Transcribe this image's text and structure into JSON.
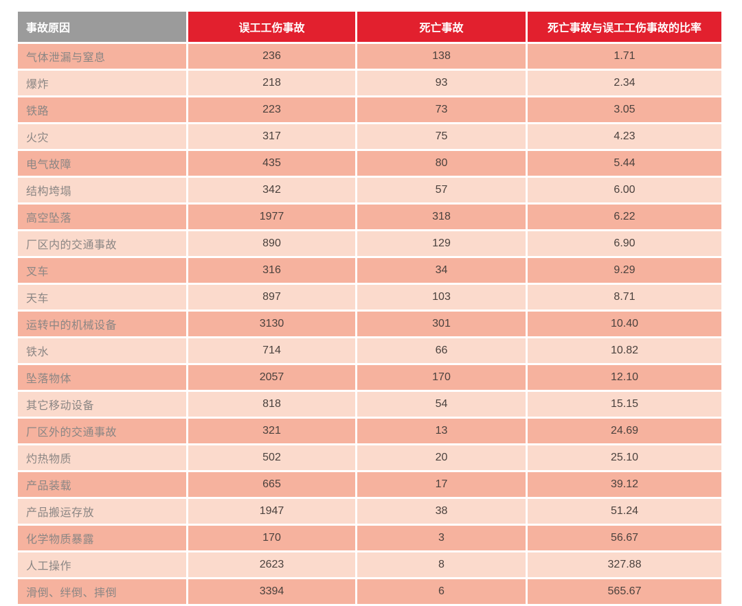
{
  "colors": {
    "background": "#ffffff",
    "header_gray": "#9b9b9b",
    "header_red": "#e2202e",
    "header_text": "#ffffff",
    "row_dark": "#f6b29e",
    "row_light": "#fbdacc",
    "label_text": "#8b8684",
    "number_text": "#4a413d"
  },
  "chart_data": {
    "type": "table",
    "title": "",
    "columns": [
      "事故原因",
      "误工工伤事故",
      "死亡事故",
      "死亡事故与误工工伤事故的比率"
    ],
    "rows": [
      [
        "气体泄漏与窒息",
        "236",
        "138",
        "1.71"
      ],
      [
        "爆炸",
        "218",
        "93",
        "2.34"
      ],
      [
        "铁路",
        "223",
        "73",
        "3.05"
      ],
      [
        "火灾",
        "317",
        "75",
        "4.23"
      ],
      [
        "电气故障",
        "435",
        "80",
        "5.44"
      ],
      [
        "结构垮塌",
        "342",
        "57",
        "6.00"
      ],
      [
        "高空坠落",
        "1977",
        "318",
        "6.22"
      ],
      [
        "厂区内的交通事故",
        "890",
        "129",
        "6.90"
      ],
      [
        "叉车",
        "316",
        "34",
        "9.29"
      ],
      [
        "天车",
        "897",
        "103",
        "8.71"
      ],
      [
        "运转中的机械设备",
        "3130",
        "301",
        "10.40"
      ],
      [
        "铁水",
        "714",
        "66",
        "10.82"
      ],
      [
        "坠落物体",
        "2057",
        "170",
        "12.10"
      ],
      [
        "其它移动设备",
        "818",
        "54",
        "15.15"
      ],
      [
        "厂区外的交通事故",
        "321",
        "13",
        "24.69"
      ],
      [
        "灼热物质",
        "502",
        "20",
        "25.10"
      ],
      [
        "产品装载",
        "665",
        "17",
        "39.12"
      ],
      [
        "产品搬运存放",
        "1947",
        "38",
        "51.24"
      ],
      [
        "化学物质暴露",
        "170",
        "3",
        "56.67"
      ],
      [
        "人工操作",
        "2623",
        "8",
        "327.88"
      ],
      [
        "滑倒、绊倒、摔倒",
        "3394",
        "6",
        "565.67"
      ]
    ]
  }
}
